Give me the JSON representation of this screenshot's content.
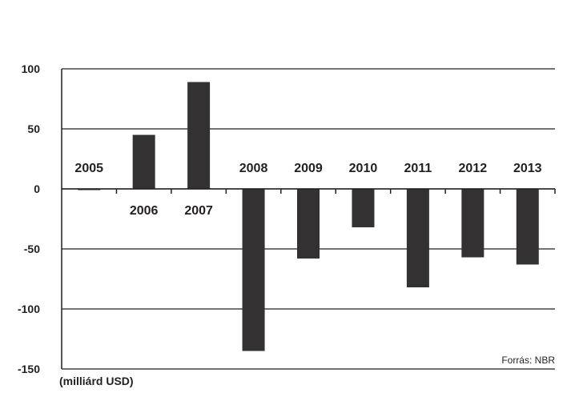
{
  "chart_data": {
    "type": "bar",
    "categories": [
      "2005",
      "2006",
      "2007",
      "2008",
      "2009",
      "2010",
      "2011",
      "2012",
      "2013"
    ],
    "values": [
      -1,
      45,
      89,
      -135,
      -58,
      -32,
      -82,
      -57,
      -63
    ],
    "ylim": [
      -150,
      100
    ],
    "yticks": [
      100,
      50,
      0,
      -50,
      -100,
      -150
    ],
    "unit_label": "(milliárd USD)",
    "source_note": "Forrás: NBR",
    "grid": true,
    "bar_color": "#333132"
  }
}
